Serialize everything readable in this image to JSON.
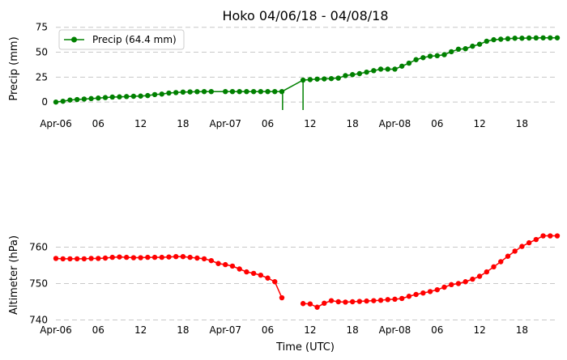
{
  "chart_data": [
    {
      "type": "line",
      "title": "Hoko 04/06/18 - 04/08/18",
      "xlabel": "",
      "ylabel": "Precip (mm)",
      "x_ticks": [
        "Apr-06",
        "06",
        "12",
        "18",
        "Apr-07",
        "06",
        "12",
        "18",
        "Apr-08",
        "06",
        "12",
        "18"
      ],
      "x_range_hours": [
        0,
        71
      ],
      "ylim": [
        -8,
        78
      ],
      "y_ticks": [
        0,
        25,
        50,
        75
      ],
      "grid": "horizontal dashed",
      "legend": "top-left",
      "color": "#008000",
      "series": [
        {
          "name": "Precip (64.4 mm)",
          "x": [
            0,
            1,
            2,
            3,
            4,
            5,
            6,
            7,
            8,
            9,
            10,
            11,
            12,
            13,
            14,
            15,
            16,
            17,
            18,
            19,
            20,
            21,
            22,
            24,
            25,
            26,
            27,
            28,
            29,
            30,
            31,
            32,
            35,
            36,
            37,
            38,
            39,
            40,
            41,
            42,
            43,
            44,
            45,
            46,
            47,
            48,
            49,
            50,
            51,
            52,
            53,
            54,
            55,
            56,
            57,
            58,
            59,
            60,
            61,
            62,
            63,
            64,
            65,
            66,
            67,
            68,
            69,
            70,
            71
          ],
          "y": [
            0,
            0.8,
            2,
            2.5,
            3,
            3.5,
            4,
            4.5,
            5,
            5.2,
            5.5,
            5.8,
            6,
            6.5,
            7.5,
            8,
            9,
            9.5,
            10,
            10.2,
            10.4,
            10.5,
            10.5,
            10.5,
            10.5,
            10.5,
            10.5,
            10.5,
            10.5,
            10.5,
            10.5,
            10.5,
            22,
            22.5,
            23,
            23.2,
            23.5,
            24,
            26.5,
            27.5,
            28.5,
            30,
            31.5,
            33,
            33,
            33,
            36,
            39,
            42.5,
            44.5,
            46,
            46.5,
            47.5,
            50.5,
            53,
            53.5,
            56,
            58,
            61,
            62.5,
            63,
            63.5,
            64,
            64,
            64.2,
            64.3,
            64.4,
            64.4,
            64.4
          ],
          "gap_drops": [
            {
              "x": 32.1,
              "from": 10.5,
              "to": -8
            },
            {
              "x": 35,
              "from": 22,
              "to": -8
            }
          ]
        }
      ]
    },
    {
      "type": "line",
      "title": "",
      "xlabel": "Time (UTC)",
      "ylabel": "Altimeter (hPa)",
      "x_ticks": [
        "Apr-06",
        "06",
        "12",
        "18",
        "Apr-07",
        "06",
        "12",
        "18",
        "Apr-08",
        "06",
        "12",
        "18"
      ],
      "x_range_hours": [
        0,
        71
      ],
      "ylim": [
        739,
        763
      ],
      "y_ticks": [
        740,
        750,
        760
      ],
      "grid": "horizontal dashed",
      "legend": "none",
      "color": "#ff0000",
      "series": [
        {
          "x": [
            0,
            1,
            2,
            3,
            4,
            5,
            6,
            7,
            8,
            9,
            10,
            11,
            12,
            13,
            14,
            15,
            16,
            17,
            18,
            19,
            20,
            21,
            22,
            23,
            24,
            25,
            26,
            27,
            28,
            29,
            30,
            31,
            32
          ],
          "y": [
            756.9,
            756.8,
            756.8,
            756.8,
            756.8,
            756.9,
            756.9,
            757.0,
            757.2,
            757.3,
            757.2,
            757.1,
            757.1,
            757.2,
            757.2,
            757.2,
            757.3,
            757.4,
            757.4,
            757.2,
            757.0,
            756.8,
            756.3,
            755.5,
            755.2,
            754.8,
            754.0,
            753.2,
            752.8,
            752.3,
            751.5,
            750.5,
            746.1
          ]
        },
        {
          "x": [
            35,
            36,
            37,
            38,
            39,
            40,
            41,
            42,
            43,
            44,
            45,
            46,
            47,
            48,
            49,
            50,
            51,
            52,
            53,
            54,
            55,
            56,
            57,
            58,
            59,
            60,
            61,
            62,
            63,
            64,
            65,
            66,
            67,
            68,
            69,
            70,
            71
          ],
          "y": [
            744.5,
            744.4,
            743.5,
            744.6,
            745.3,
            745.0,
            744.9,
            745.0,
            745.1,
            745.2,
            745.3,
            745.4,
            745.6,
            745.7,
            745.9,
            746.5,
            747.0,
            747.4,
            747.8,
            748.3,
            749.0,
            749.7,
            750.0,
            750.5,
            751.2,
            752.0,
            753.2,
            754.6,
            756.0,
            757.5,
            758.9,
            760.2,
            761.2,
            762.1,
            763.1,
            763.1,
            763.1
          ]
        }
      ]
    }
  ]
}
